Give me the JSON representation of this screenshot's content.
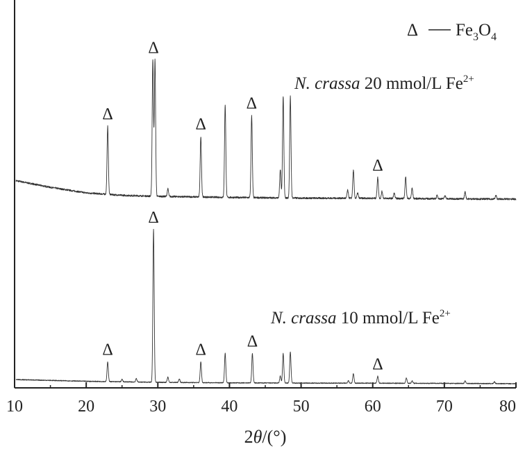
{
  "chart_data": {
    "type": "line",
    "title": "",
    "xlabel": "2θ/(°)",
    "ylabel": "",
    "xlim": [
      10,
      80
    ],
    "x_ticks": [
      "10",
      "20",
      "30",
      "40",
      "50",
      "60",
      "70",
      "80"
    ],
    "grid": false,
    "legend": {
      "symbol": "Δ",
      "label": "Fe3O4",
      "placement": "top-right"
    },
    "series": [
      {
        "name": "N. crassa 20 mmol/L Fe2+",
        "baseline": [
          [
            10,
            0.56
          ],
          [
            15,
            0.36
          ],
          [
            20,
            0.2
          ],
          [
            25,
            0.13
          ],
          [
            30,
            0.1
          ],
          [
            40,
            0.07
          ],
          [
            50,
            0.05
          ],
          [
            60,
            0.045
          ],
          [
            70,
            0.03
          ],
          [
            80,
            0.02
          ]
        ],
        "peaks": [
          {
            "x": 23.0,
            "height": 1.96
          },
          {
            "x": 29.3,
            "height": 3.93
          },
          {
            "x": 29.6,
            "height": 3.93
          },
          {
            "x": 31.4,
            "height": 0.22
          },
          {
            "x": 36.0,
            "height": 1.75
          },
          {
            "x": 39.4,
            "height": 2.67
          },
          {
            "x": 43.1,
            "height": 2.37
          },
          {
            "x": 47.1,
            "height": 0.8
          },
          {
            "x": 47.5,
            "height": 2.93
          },
          {
            "x": 48.5,
            "height": 2.93
          },
          {
            "x": 56.5,
            "height": 0.23
          },
          {
            "x": 57.3,
            "height": 0.8
          },
          {
            "x": 57.9,
            "height": 0.15
          },
          {
            "x": 60.7,
            "height": 0.6
          },
          {
            "x": 61.3,
            "height": 0.2
          },
          {
            "x": 63.0,
            "height": 0.15
          },
          {
            "x": 64.6,
            "height": 0.62
          },
          {
            "x": 65.5,
            "height": 0.3
          },
          {
            "x": 69.0,
            "height": 0.1
          },
          {
            "x": 70.1,
            "height": 0.1
          },
          {
            "x": 72.9,
            "height": 0.2
          },
          {
            "x": 77.2,
            "height": 0.1
          }
        ]
      },
      {
        "name": "N. crassa 10 mmol/L Fe2+",
        "baseline": [
          [
            10,
            0.12
          ],
          [
            20,
            0.07
          ],
          [
            30,
            0.04
          ],
          [
            40,
            0.025
          ],
          [
            50,
            0.018
          ],
          [
            60,
            0.015
          ],
          [
            70,
            0.01
          ],
          [
            80,
            0.0
          ]
        ],
        "peaks": [
          {
            "x": 23.0,
            "height": 0.57
          },
          {
            "x": 25.0,
            "height": 0.07
          },
          {
            "x": 27.0,
            "height": 0.1
          },
          {
            "x": 29.4,
            "height": 4.4
          },
          {
            "x": 31.4,
            "height": 0.15
          },
          {
            "x": 33.0,
            "height": 0.1
          },
          {
            "x": 36.0,
            "height": 0.6
          },
          {
            "x": 39.4,
            "height": 0.85
          },
          {
            "x": 43.2,
            "height": 0.85
          },
          {
            "x": 47.1,
            "height": 0.2
          },
          {
            "x": 47.5,
            "height": 0.85
          },
          {
            "x": 48.5,
            "height": 0.9
          },
          {
            "x": 56.6,
            "height": 0.07
          },
          {
            "x": 57.3,
            "height": 0.27
          },
          {
            "x": 60.7,
            "height": 0.2
          },
          {
            "x": 64.7,
            "height": 0.15
          },
          {
            "x": 65.5,
            "height": 0.07
          },
          {
            "x": 72.9,
            "height": 0.07
          },
          {
            "x": 77.0,
            "height": 0.05
          }
        ]
      }
    ],
    "annotations": [
      {
        "series": 0,
        "x": 23.0,
        "text": "Δ"
      },
      {
        "series": 0,
        "x": 29.4,
        "text": "Δ"
      },
      {
        "series": 0,
        "x": 36.0,
        "text": "Δ"
      },
      {
        "series": 0,
        "x": 43.1,
        "text": "Δ"
      },
      {
        "series": 0,
        "x": 60.7,
        "text": "Δ"
      },
      {
        "series": 1,
        "x": 23.0,
        "text": "Δ"
      },
      {
        "series": 1,
        "x": 29.4,
        "text": "Δ"
      },
      {
        "series": 1,
        "x": 36.0,
        "text": "Δ"
      },
      {
        "series": 1,
        "x": 43.2,
        "text": "Δ"
      },
      {
        "series": 1,
        "x": 60.7,
        "text": "Δ"
      }
    ]
  }
}
